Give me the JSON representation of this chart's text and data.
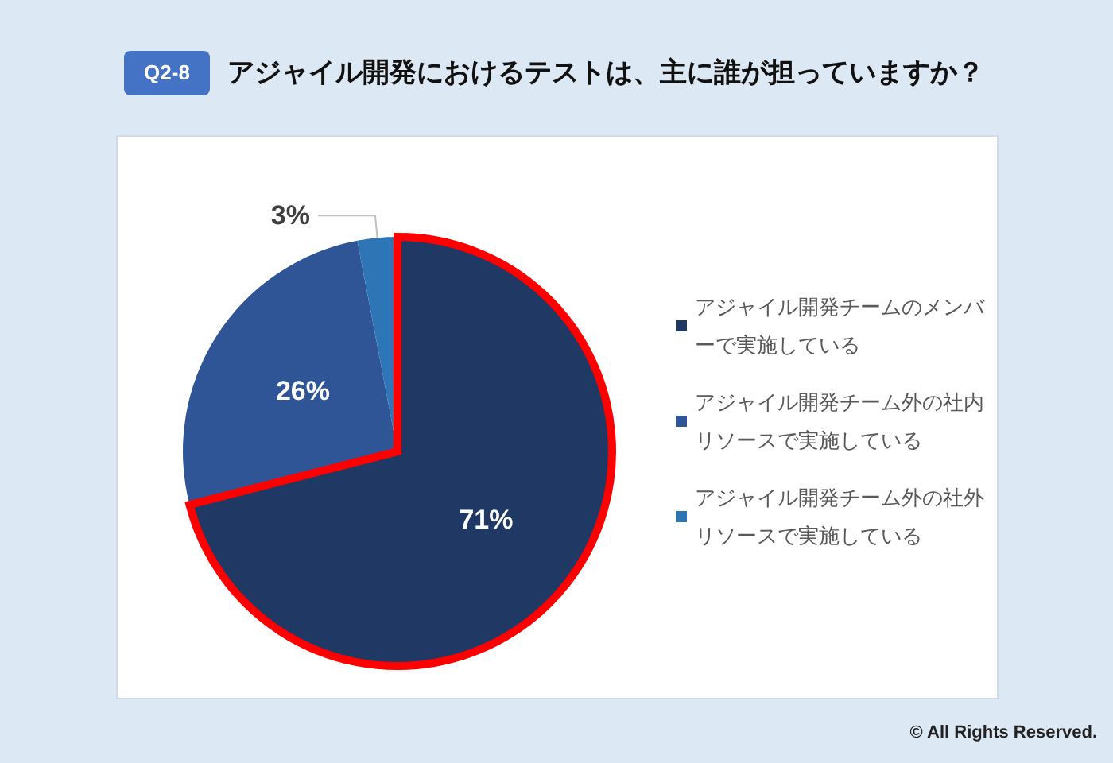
{
  "chart_data": {
    "type": "pie",
    "title": "アジャイル開発におけるテストは、主に誰が担っていますか？",
    "subtitle": "Q2-8",
    "categories": [
      "アジャイル開発チームのメンバーで実施している",
      "アジャイル開発チーム外の社内リソースで実施している",
      "アジャイル開発チーム外の社外リソースで実施している"
    ],
    "values": [
      71,
      26,
      3
    ],
    "colors": [
      "#203864",
      "#2f5597",
      "#2e75b6"
    ],
    "value_labels": [
      "71%",
      "26%",
      "3%"
    ],
    "legend": "right",
    "annotations": [
      "© All Rights Reserved."
    ]
  }
}
